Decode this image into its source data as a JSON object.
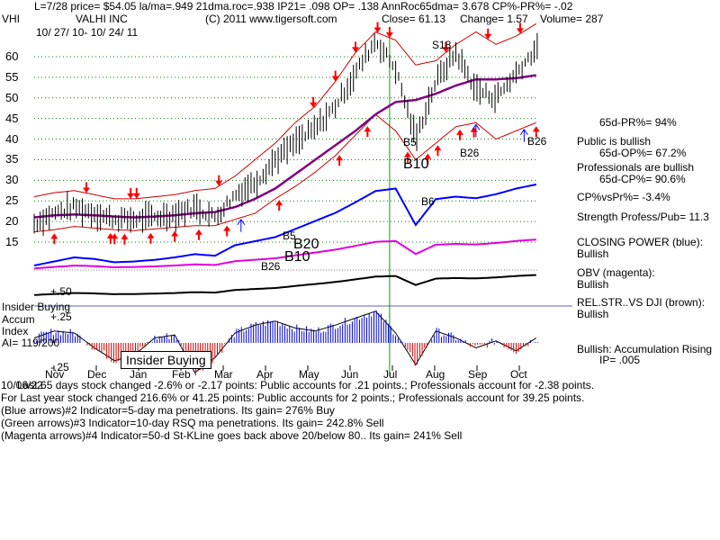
{
  "header": {
    "line1": "L=7/28  price= $54.05  la/ma=.949 21dma.roc=.938 IP21= .098 OP= .138 AnnRoc65dma= 3.678 CP%-PR%= -.02",
    "ticker": "VHI",
    "company": "VALHI INC",
    "copyright": "(C) 2011 www.tigersoft.com",
    "close": "Close= 61.13",
    "change": "Change= 1.57",
    "volume": "Volume= 287",
    "date_range": "10/ 27/ 10- 10/ 24/ 11"
  },
  "right_panel": {
    "pr65": "65d-PR%= 94%",
    "public": "Public is bullish",
    "op65": "65d-OP%= 67.2%",
    "professionals": "Professionals are bullish",
    "cp65": "65d-CP%= 90.6%",
    "cpvspr": "CP%vsPr%= -3.4%",
    "strength": "Strength Profess/Pub= 11.3",
    "closing_power": "CLOSING POWER (blue):",
    "closing_power_val": "Bullish",
    "obv": "OBV (magenta):",
    "obv_val": "Bullish",
    "relstr": "REL.STR..VS DJI (brown):",
    "relstr_val": "Bullish",
    "accum": "Bullish: Accumulation Rising",
    "ip": "IP=  .005"
  },
  "left_panel": {
    "insider_buying": "Insider Buying",
    "accum": "Accum",
    "index": "Index",
    "ai": "AI= 119/200"
  },
  "chart_labels": {
    "s18": "S18",
    "b5a": "B5",
    "b10a": "B10",
    "b6": "B6",
    "b26a": "B26",
    "b26b": "B26",
    "b5b": "B5",
    "b20": "B20",
    "b10b": "B10",
    "b26c": "B26",
    "insider_box": "Insider Buying"
  },
  "footer": {
    "line1": "Last 65 days stock changed -2.6% or -2.17 points:  Public accounts for  .21 points.;  Professionals account for  -2.38 points.",
    "line1_overlap": "10/06/22",
    "line2": " For Last year stock changed  216.6% or  41.25 points:  Public accounts for  2 points.;  Professionals account for  39.25 points.",
    "line3": " (Blue arrows)#2 Indicator=5-day ma penetrations. Its gain= 276% Buy",
    "line4": " (Green arrows)#3 Indicator=10-day RSQ ma penetrations. Its gain= 242.8% Sell",
    "line5": "(Magenta arrows)#4 Indicator=50-d St-KLine goes back above 20/below 80.. Its gain= 241% Sell"
  },
  "colors": {
    "price": "#000000",
    "ma": "#800080",
    "band": "#cc0000",
    "closing_power": "#0000ff",
    "obv": "#e000e0",
    "relstr": "#000000",
    "accum_pos": "#0000cc",
    "accum_neg": "#cc0000",
    "grid": "#008000",
    "signal": "#00a000",
    "arrow_red": "#ff0000",
    "arrow_blue": "#0000ff"
  },
  "chart_data": {
    "type": "line",
    "title": "VALHI INC",
    "ylim": [
      10,
      70
    ],
    "yticks": [
      15,
      20,
      25,
      30,
      35,
      40,
      45,
      50,
      55,
      60
    ],
    "accum_ticks": [
      "+.50",
      "+.25",
      "-.25"
    ],
    "months": [
      "Nov",
      "Dec",
      "Jan",
      "Feb",
      "Mar",
      "Apr",
      "May",
      "Jun",
      "Jul",
      "Aug",
      "Sep",
      "Oct"
    ],
    "price_series": {
      "x": [
        0,
        10,
        20,
        30,
        40,
        50,
        60,
        70,
        80,
        90,
        100,
        110,
        120,
        130,
        140,
        150,
        160,
        170,
        180,
        190,
        200,
        210,
        220,
        230,
        240,
        250,
        251
      ],
      "close": [
        19.5,
        22,
        23.5,
        22,
        20.5,
        20.5,
        21,
        21.8,
        23.5,
        21,
        26.5,
        29.5,
        35,
        39,
        42.5,
        48,
        56,
        64,
        57,
        40,
        54,
        61,
        52,
        50,
        56,
        62,
        61.1
      ]
    },
    "ma50": [
      21,
      21.5,
      21.7,
      21.5,
      21.2,
      21,
      21.2,
      21.5,
      22,
      22.3,
      23.5,
      25.5,
      28,
      31.5,
      35,
      38.5,
      42,
      46,
      49,
      49.5,
      51,
      53,
      54.5,
      54.5,
      54.8,
      55.5,
      55.6
    ],
    "band_upper": [
      26,
      27,
      27.5,
      26.5,
      25.5,
      25.5,
      26,
      26.5,
      27.5,
      28,
      31,
      35,
      39,
      44,
      48,
      54,
      61,
      66,
      64,
      58,
      59,
      63,
      66,
      63,
      65,
      68,
      69
    ],
    "band_lower": [
      17.5,
      18,
      18.8,
      18.4,
      18,
      17.8,
      18.2,
      18.6,
      19,
      19,
      20.5,
      22,
      25.5,
      28.5,
      32,
      36,
      41,
      46,
      42,
      35,
      39,
      43,
      44,
      40,
      42,
      44,
      45
    ],
    "closing_power": [
      -0.4,
      -0.35,
      -0.3,
      -0.32,
      -0.36,
      -0.35,
      -0.33,
      -0.3,
      -0.26,
      -0.28,
      -0.15,
      -0.1,
      -0.05,
      0.05,
      0.15,
      0.25,
      0.38,
      0.52,
      0.55,
      0.1,
      0.42,
      0.45,
      0.43,
      0.48,
      0.55,
      0.6,
      0.58
    ],
    "accum_index": [
      0.05,
      0.12,
      0.1,
      -0.05,
      -0.18,
      -0.12,
      0.05,
      0.08,
      -0.3,
      -0.15,
      0.1,
      0.18,
      0.22,
      0.15,
      0.12,
      0.18,
      0.25,
      0.32,
      0.1,
      -0.22,
      0.12,
      0.05,
      -0.05,
      0.02,
      -0.08,
      0.05,
      0.03
    ]
  }
}
